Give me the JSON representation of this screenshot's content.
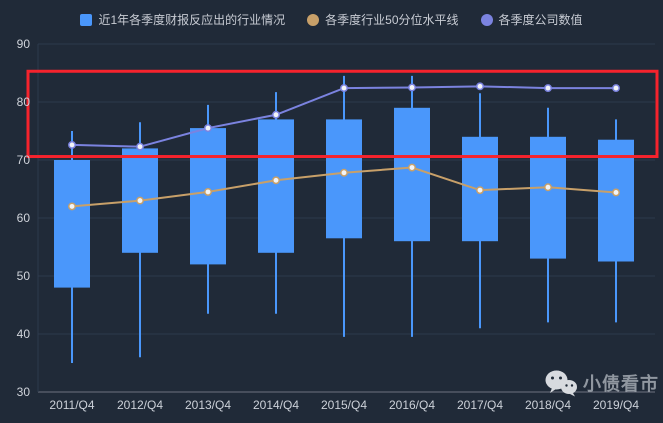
{
  "legend": {
    "items": [
      {
        "label": "近1年各季度财报反应出的行业情况",
        "shape": "square",
        "color": "#4a97fb"
      },
      {
        "label": "各季度行业50分位水平线",
        "shape": "circle",
        "color": "#c8a069"
      },
      {
        "label": "各季度公司数值",
        "shape": "circle",
        "color": "#7b83e0"
      }
    ]
  },
  "watermark": {
    "label": "小债看市",
    "icon": "wechat-icon"
  },
  "colors": {
    "background": "#202a38",
    "gridline": "#2d3a4d",
    "axis_line": "#6e7380",
    "candle": "#4a97fb",
    "median_line": "#c8a069",
    "company_line": "#7b83e0",
    "annotation": "#f5232d",
    "marker_fill": "#f2f4f7"
  },
  "chart_data": {
    "type": "candlestick+line",
    "title": "",
    "xlabel": "",
    "ylabel": "",
    "ylim": [
      30,
      90
    ],
    "y_step": 10,
    "grid": true,
    "legend_position": "top",
    "categories": [
      "2011/Q4",
      "2012/Q4",
      "2013/Q4",
      "2014/Q4",
      "2015/Q4",
      "2016/Q4",
      "2017/Q4",
      "2018/Q4",
      "2019/Q4"
    ],
    "series": [
      {
        "name": "近1年各季度财报反应出的行业情况",
        "type": "candlestick",
        "color": "#4a97fb",
        "values": [
          {
            "low": 35,
            "box_low": 48,
            "box_high": 70,
            "high": 75
          },
          {
            "low": 36,
            "box_low": 54,
            "box_high": 72,
            "high": 76.5
          },
          {
            "low": 43.5,
            "box_low": 52,
            "box_high": 75.5,
            "high": 79.5
          },
          {
            "low": 43.5,
            "box_low": 54,
            "box_high": 77,
            "high": 81.7
          },
          {
            "low": 39.5,
            "box_low": 56.5,
            "box_high": 77,
            "high": 84.5
          },
          {
            "low": 39.5,
            "box_low": 56,
            "box_high": 79,
            "high": 84.5
          },
          {
            "low": 41,
            "box_low": 56,
            "box_high": 74,
            "high": 81.5
          },
          {
            "low": 42,
            "box_low": 53,
            "box_high": 74,
            "high": 79
          },
          {
            "low": 42,
            "box_low": 52.5,
            "box_high": 73.5,
            "high": 77
          }
        ]
      },
      {
        "name": "各季度行业50分位水平线",
        "type": "line",
        "color": "#c8a069",
        "values": [
          62,
          63,
          64.5,
          66.5,
          67.8,
          68.7,
          64.8,
          65.3,
          64.4
        ]
      },
      {
        "name": "各季度公司数值",
        "type": "line",
        "color": "#7b83e0",
        "values": [
          72.6,
          72.3,
          75.5,
          77.8,
          82.4,
          82.5,
          82.7,
          82.4,
          82.4
        ]
      }
    ],
    "annotation": {
      "type": "rect",
      "color": "#f5232d",
      "x_span": "full",
      "y_range": [
        70.6,
        85.3
      ]
    }
  }
}
